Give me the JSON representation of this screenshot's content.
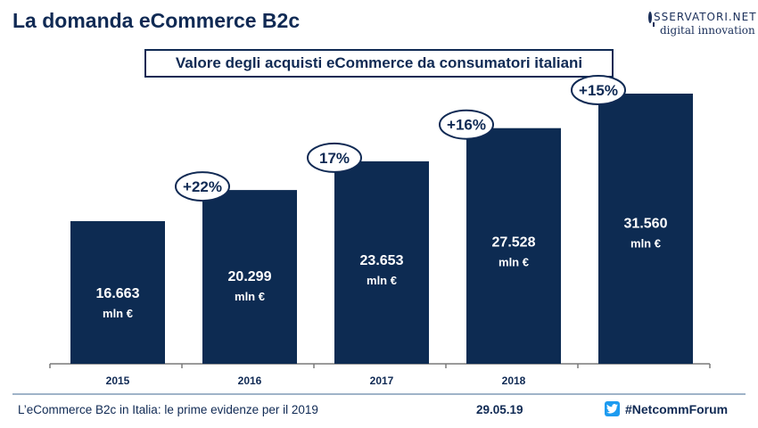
{
  "header": {
    "title": "La domanda eCommerce B2c",
    "logo_top": "SSERVATORI.NET",
    "logo_bottom": "digital innovation"
  },
  "chart_data": {
    "type": "bar",
    "title": "Valore degli acquisti eCommerce da consumatori italiani",
    "categories": [
      "2015",
      "2016",
      "2017",
      "2018",
      ""
    ],
    "values": [
      16663,
      20299,
      23653,
      27528,
      31560
    ],
    "value_labels": [
      "16.663",
      "20.299",
      "23.653",
      "27.528",
      "31.560"
    ],
    "unit": "mln €",
    "growth_labels": [
      "+22%",
      "17%",
      "+16%",
      "+15%"
    ],
    "ylim": [
      0,
      31560
    ],
    "grid": false,
    "bar_color": "#0d2b52"
  },
  "footer": {
    "left_text": "L’eCommerce B2c in Italia: le prime evidenze per il 2019",
    "date": "29.05.19",
    "hashtag": "#NetcommForum",
    "icon": "twitter-icon",
    "line_color": "#9fb3c8"
  }
}
